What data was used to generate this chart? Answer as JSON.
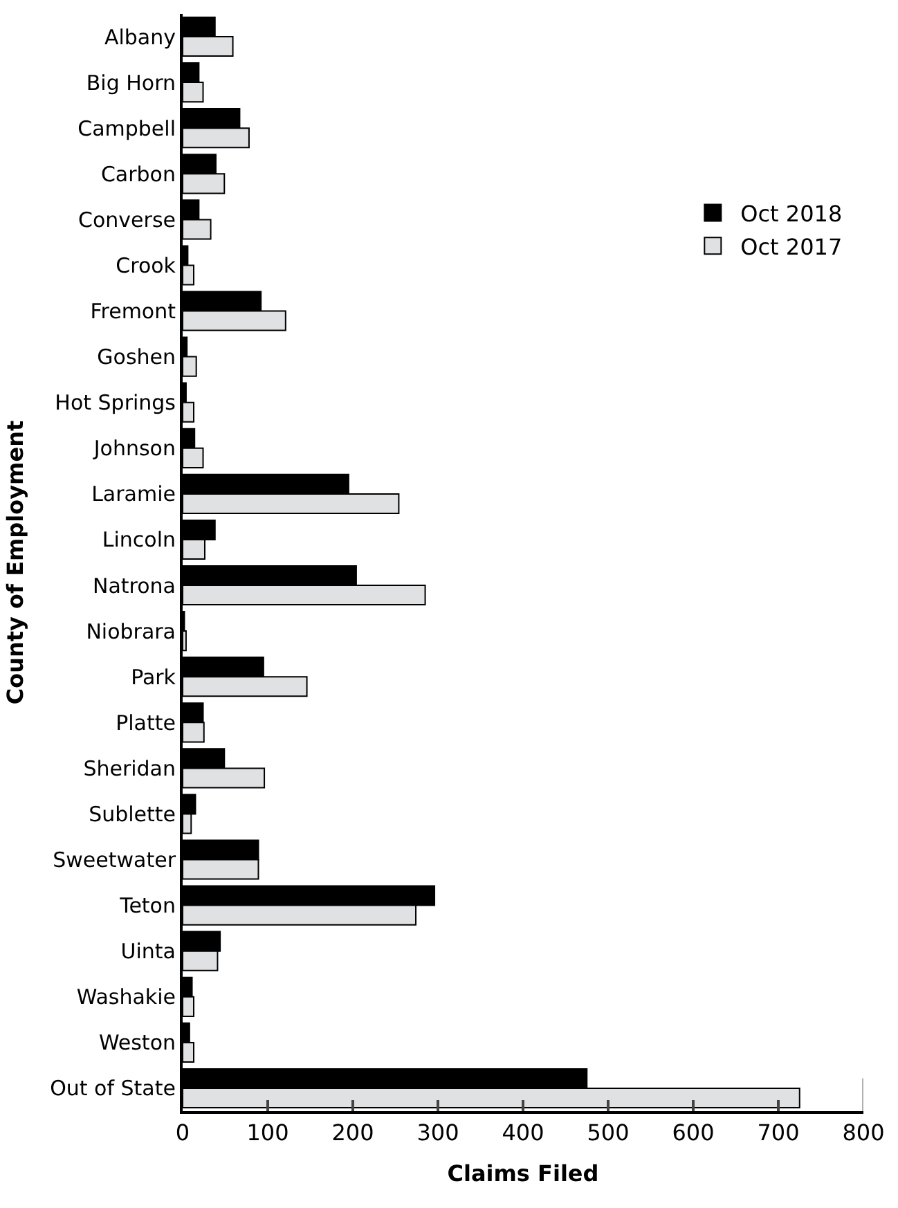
{
  "chart_data": {
    "type": "bar",
    "orientation": "horizontal",
    "xlabel": "Claims Filed",
    "ylabel": "County of Employment",
    "categories": [
      "Albany",
      "Big Horn",
      "Campbell",
      "Carbon",
      "Converse",
      "Crook",
      "Fremont",
      "Goshen",
      "Hot Springs",
      "Johnson",
      "Laramie",
      "Lincoln",
      "Natrona",
      "Niobrara",
      "Park",
      "Platte",
      "Sheridan",
      "Sublette",
      "Sweetwater",
      "Teton",
      "Uinta",
      "Washakie",
      "Weston",
      "Out of State"
    ],
    "series": [
      {
        "name": "Oct 2018",
        "color": "#000000",
        "values": [
          38,
          19,
          67,
          39,
          19,
          6,
          92,
          5,
          4,
          14,
          195,
          38,
          204,
          2,
          95,
          24,
          49,
          15,
          89,
          296,
          44,
          11,
          8,
          475
        ]
      },
      {
        "name": "Oct 2017",
        "color": "#e0e1e3",
        "values": [
          59,
          24,
          78,
          49,
          33,
          13,
          121,
          16,
          13,
          24,
          254,
          26,
          285,
          4,
          146,
          25,
          96,
          10,
          89,
          274,
          41,
          13,
          13,
          725
        ]
      }
    ],
    "xlim": [
      0,
      800
    ],
    "xticks": [
      0,
      100,
      200,
      300,
      400,
      500,
      600,
      700,
      800
    ],
    "grid": false,
    "legend": "top right"
  }
}
